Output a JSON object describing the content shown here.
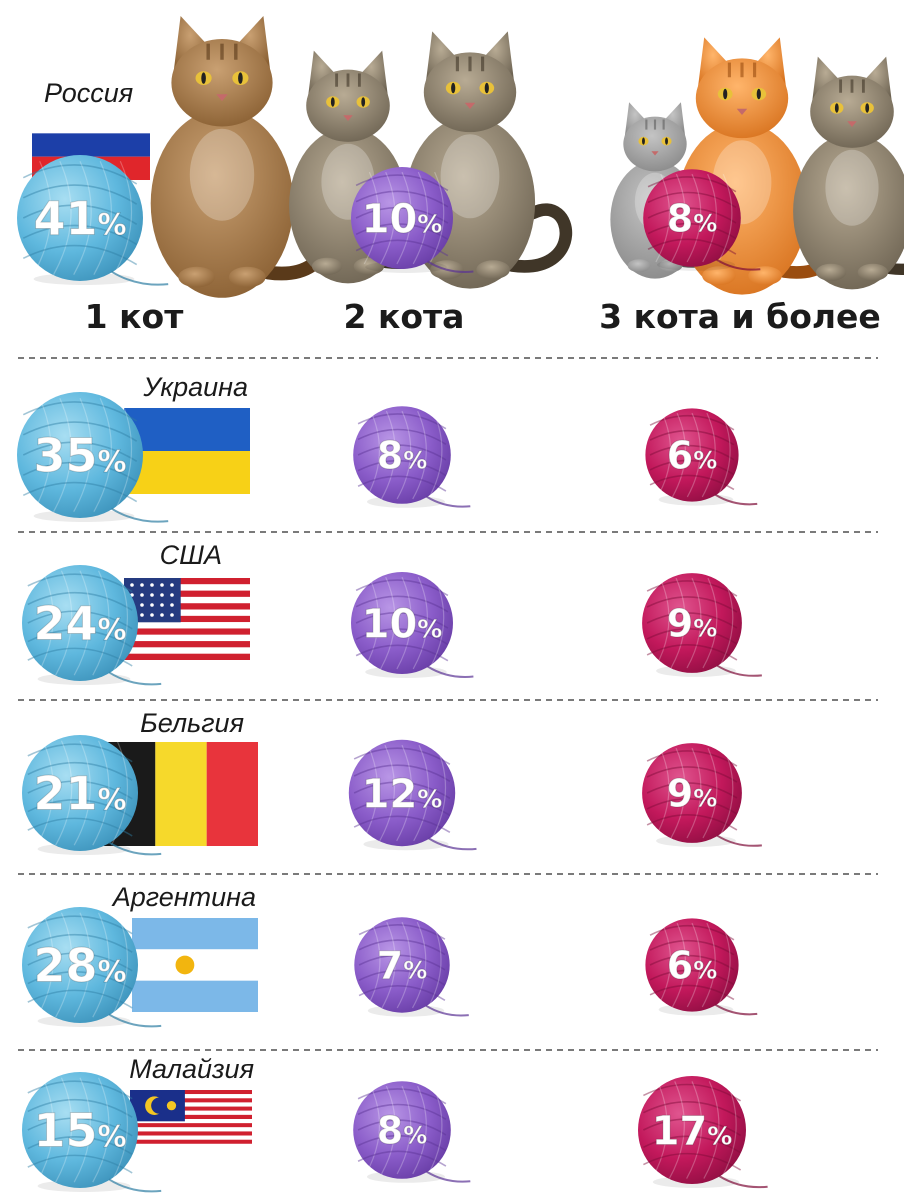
{
  "chart_data": {
    "type": "table",
    "columns": [
      "1 кот",
      "2 кота",
      "3 кота и более"
    ],
    "rows": [
      {
        "country": "Россия",
        "flag": "russia",
        "values": [
          41,
          10,
          8
        ]
      },
      {
        "country": "Украина",
        "flag": "ukraine",
        "values": [
          35,
          8,
          6
        ]
      },
      {
        "country": "США",
        "flag": "usa",
        "values": [
          24,
          10,
          9
        ]
      },
      {
        "country": "Бельгия",
        "flag": "belgium",
        "values": [
          21,
          12,
          9
        ]
      },
      {
        "country": "Аргентина",
        "flag": "argentina",
        "values": [
          28,
          7,
          6
        ]
      },
      {
        "country": "Малайзия",
        "flag": "malaysia",
        "values": [
          15,
          8,
          17
        ]
      }
    ],
    "unit": "%",
    "ball_colors": [
      "#5fb8de",
      "#8a5cc9",
      "#c2185b"
    ],
    "illustration_icons": [
      "cat-icon",
      "yarn-ball-icon"
    ]
  }
}
